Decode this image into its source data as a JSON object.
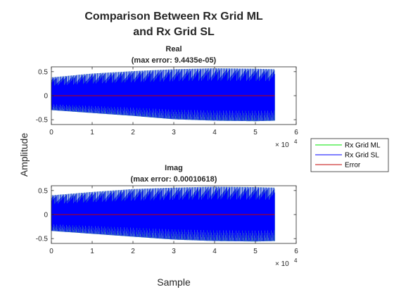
{
  "figure": {
    "title_line1": "Comparison Between Rx Grid ML",
    "title_line2": "and Rx Grid SL",
    "ylabel": "Amplitude",
    "xlabel": "Sample"
  },
  "legend": {
    "entries": [
      {
        "label": "Rx Grid ML",
        "color": "#00e600"
      },
      {
        "label": "Rx Grid SL",
        "color": "#0000ff"
      },
      {
        "label": "Error",
        "color": "#c00000"
      }
    ]
  },
  "chart_data": [
    {
      "type": "line",
      "title": "Real",
      "subtitle": "(max error: 9.4435e-05)",
      "xlim": [
        0,
        60000
      ],
      "ylim": [
        -0.6,
        0.6
      ],
      "x_ticks": [
        "0",
        "1",
        "2",
        "3",
        "4",
        "5",
        "6"
      ],
      "x_exponent_base": "× 10",
      "x_exponent_power": "4",
      "y_ticks": [
        "0.5",
        "0",
        "-0.5"
      ],
      "series": [
        {
          "name": "Rx Grid ML",
          "color": "#00e600",
          "x_range": [
            0,
            54720
          ],
          "envelope_x": [
            0,
            10000,
            20000,
            30000,
            40000,
            50000,
            54720
          ],
          "envelope_upper": [
            0.38,
            0.46,
            0.51,
            0.55,
            0.57,
            0.56,
            0.55
          ],
          "envelope_lower": [
            -0.3,
            -0.36,
            -0.42,
            -0.49,
            -0.52,
            -0.53,
            -0.52
          ]
        },
        {
          "name": "Rx Grid SL",
          "color": "#0000ff",
          "x_range": [
            0,
            54720
          ],
          "envelope_x": [
            0,
            10000,
            20000,
            30000,
            40000,
            50000,
            54720
          ],
          "envelope_upper": [
            0.38,
            0.46,
            0.51,
            0.55,
            0.57,
            0.56,
            0.55
          ],
          "envelope_lower": [
            -0.3,
            -0.36,
            -0.42,
            -0.49,
            -0.52,
            -0.53,
            -0.52
          ]
        },
        {
          "name": "Error",
          "color": "#c00000",
          "x": [
            0,
            54720
          ],
          "y": [
            0,
            0
          ]
        }
      ]
    },
    {
      "type": "line",
      "title": "Imag",
      "subtitle": "(max error: 0.00010618)",
      "xlim": [
        0,
        60000
      ],
      "ylim": [
        -0.6,
        0.6
      ],
      "x_ticks": [
        "0",
        "1",
        "2",
        "3",
        "4",
        "5",
        "6"
      ],
      "x_exponent_base": "× 10",
      "x_exponent_power": "4",
      "y_ticks": [
        "0.5",
        "0",
        "-0.5"
      ],
      "series": [
        {
          "name": "Rx Grid ML",
          "color": "#00e600",
          "x_range": [
            0,
            54720
          ],
          "envelope_x": [
            0,
            10000,
            20000,
            30000,
            40000,
            50000,
            54720
          ],
          "envelope_upper": [
            0.4,
            0.47,
            0.53,
            0.56,
            0.58,
            0.57,
            0.56
          ],
          "envelope_lower": [
            -0.34,
            -0.4,
            -0.46,
            -0.52,
            -0.55,
            -0.56,
            -0.55
          ]
        },
        {
          "name": "Rx Grid SL",
          "color": "#0000ff",
          "x_range": [
            0,
            54720
          ],
          "envelope_x": [
            0,
            10000,
            20000,
            30000,
            40000,
            50000,
            54720
          ],
          "envelope_upper": [
            0.4,
            0.47,
            0.53,
            0.56,
            0.58,
            0.57,
            0.56
          ],
          "envelope_lower": [
            -0.34,
            -0.4,
            -0.46,
            -0.52,
            -0.55,
            -0.56,
            -0.55
          ]
        },
        {
          "name": "Error",
          "color": "#c00000",
          "x": [
            0,
            54720
          ],
          "y": [
            0,
            0
          ]
        }
      ]
    }
  ]
}
